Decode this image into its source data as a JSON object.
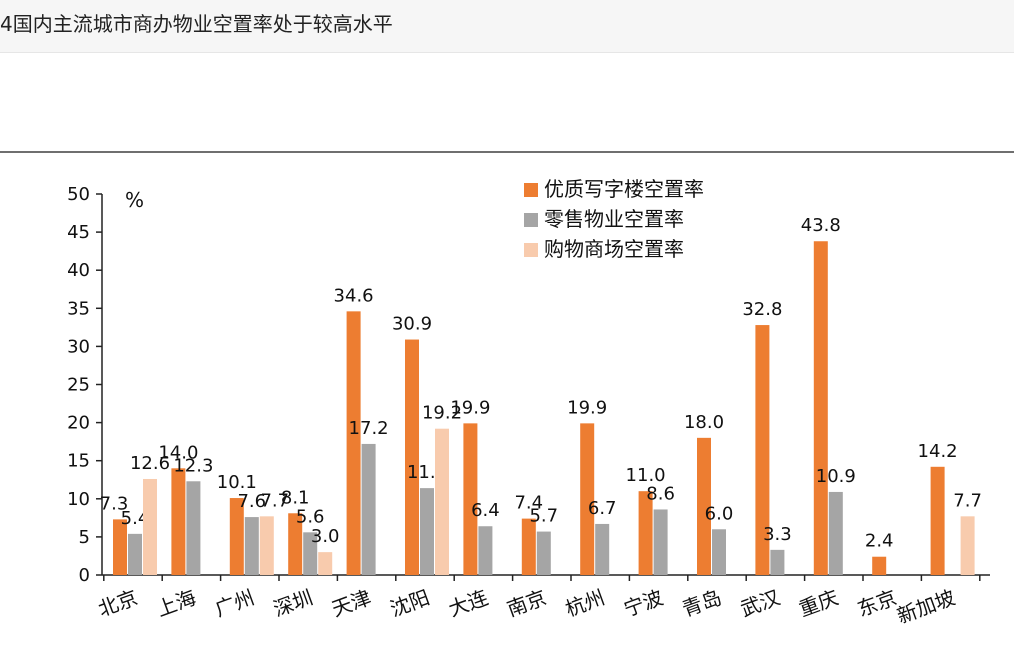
{
  "page": {
    "title": "4国内主流城市商办物业空置率处于较高水平"
  },
  "chart_data": {
    "type": "bar",
    "unit": "%",
    "ylim": [
      0,
      50
    ],
    "yticks": [
      0,
      5,
      10,
      15,
      20,
      25,
      30,
      35,
      40,
      45,
      50
    ],
    "legend_position": "top-right",
    "grid": false,
    "categories": [
      "北京",
      "上海",
      "广州",
      "深圳",
      "天津",
      "沈阳",
      "大连",
      "南京",
      "杭州",
      "宁波",
      "青岛",
      "武汉",
      "重庆",
      "东京",
      "新加坡"
    ],
    "series": [
      {
        "name": "优质写字楼空置率",
        "color": "#ED7D31",
        "values": [
          7.3,
          14.0,
          10.1,
          8.1,
          34.6,
          30.9,
          19.9,
          7.4,
          19.9,
          11.0,
          18.0,
          32.8,
          43.8,
          2.4,
          14.2
        ],
        "labels": [
          "7.3",
          "14.0",
          "10.1",
          "8.1",
          "34.6",
          "30.9",
          "19.9",
          "7.4",
          "19.9",
          "11.0",
          "18.0",
          "32.8",
          "43.8",
          "2.4",
          "14.2"
        ]
      },
      {
        "name": "零售物业空置率",
        "color": "#A5A5A5",
        "values": [
          5.4,
          12.3,
          7.6,
          5.6,
          17.2,
          11.4,
          6.4,
          5.7,
          6.7,
          8.6,
          6.0,
          3.3,
          10.9,
          null,
          null
        ],
        "labels": [
          "5.4",
          "12.3",
          "7.6",
          "5.6",
          "17.2",
          "11.4",
          "6.4",
          "5.7",
          "6.7",
          "8.6",
          "6.0",
          "3.3",
          "10.9",
          null,
          null
        ]
      },
      {
        "name": "购物商场空置率",
        "color": "#F8CBAD",
        "values": [
          12.6,
          null,
          7.7,
          3.0,
          null,
          19.2,
          null,
          null,
          null,
          null,
          null,
          null,
          null,
          null,
          7.7
        ],
        "labels": [
          "12.6",
          null,
          "7.7",
          "3.0",
          null,
          "19.2",
          null,
          null,
          null,
          null,
          null,
          null,
          null,
          null,
          "7.7"
        ]
      }
    ]
  }
}
